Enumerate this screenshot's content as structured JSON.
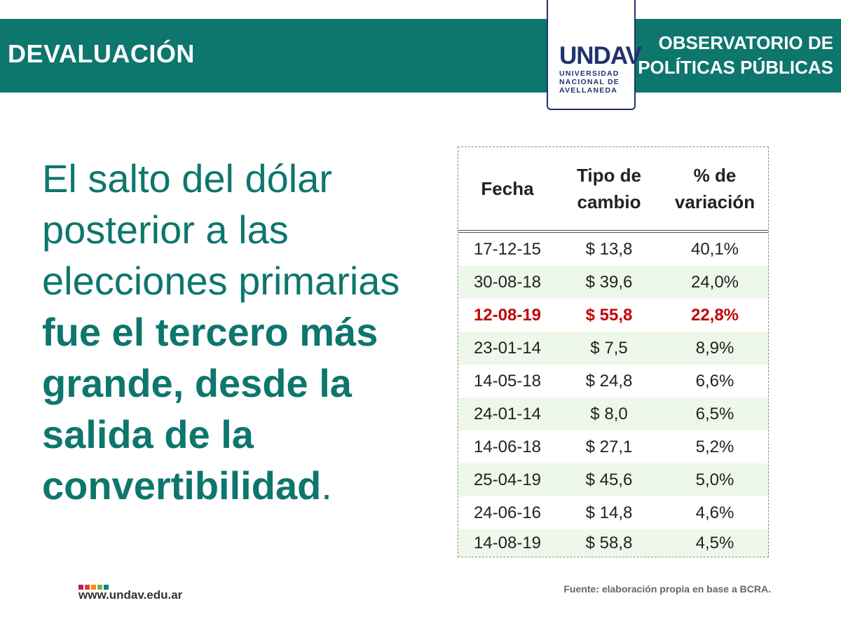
{
  "header": {
    "title": "DEVALUACIÓN",
    "right_line1": "OBSERVATORIO DE",
    "right_line2": "POLÍTICAS PÚBLICAS",
    "background_color": "#0d766d"
  },
  "logo": {
    "mark": "UNDAV",
    "line1": "UNIVERSIDAD",
    "line2": "NACIONAL DE",
    "line3": "AVELLANEDA",
    "color": "#21336b"
  },
  "headline": {
    "regular": "El salto del dólar posterior a las elecciones primarias ",
    "bold": "fue el tercero más grande, desde la salida de la convertibilidad",
    "ending": ".",
    "color": "#0d766d"
  },
  "table": {
    "headers": {
      "fecha": "Fecha",
      "tipo_line1": "Tipo de",
      "tipo_line2": "cambio",
      "var_line1": "% de",
      "var_line2": "variación"
    },
    "rows": [
      {
        "fecha": "17-12-15",
        "tipo": "$ 13,8",
        "variacion": "40,1%"
      },
      {
        "fecha": "30-08-18",
        "tipo": "$ 39,6",
        "variacion": "24,0%"
      },
      {
        "fecha": "12-08-19",
        "tipo": "$ 55,8",
        "variacion": "22,8%"
      },
      {
        "fecha": "23-01-14",
        "tipo": "$ 7,5",
        "variacion": "8,9%"
      },
      {
        "fecha": "14-05-18",
        "tipo": "$ 24,8",
        "variacion": "6,6%"
      },
      {
        "fecha": "24-01-14",
        "tipo": "$ 8,0",
        "variacion": "6,5%"
      },
      {
        "fecha": "14-06-18",
        "tipo": "$ 27,1",
        "variacion": "5,2%"
      },
      {
        "fecha": "25-04-19",
        "tipo": "$ 45,6",
        "variacion": "5,0%"
      },
      {
        "fecha": "24-06-16",
        "tipo": "$ 14,8",
        "variacion": "4,6%"
      },
      {
        "fecha": "14-08-19",
        "tipo": "$ 58,8",
        "variacion": "4,5%"
      }
    ],
    "highlight_color": "#c0050b",
    "alt_row_color": "#eef8ea"
  },
  "footer": {
    "url": "www.undav.edu.ar",
    "source": "Fuente: elaboración propia en base a BCRA.",
    "dot_colors": [
      "#c2185b",
      "#e53935",
      "#fb8c00",
      "#7cb342",
      "#00838f"
    ]
  }
}
